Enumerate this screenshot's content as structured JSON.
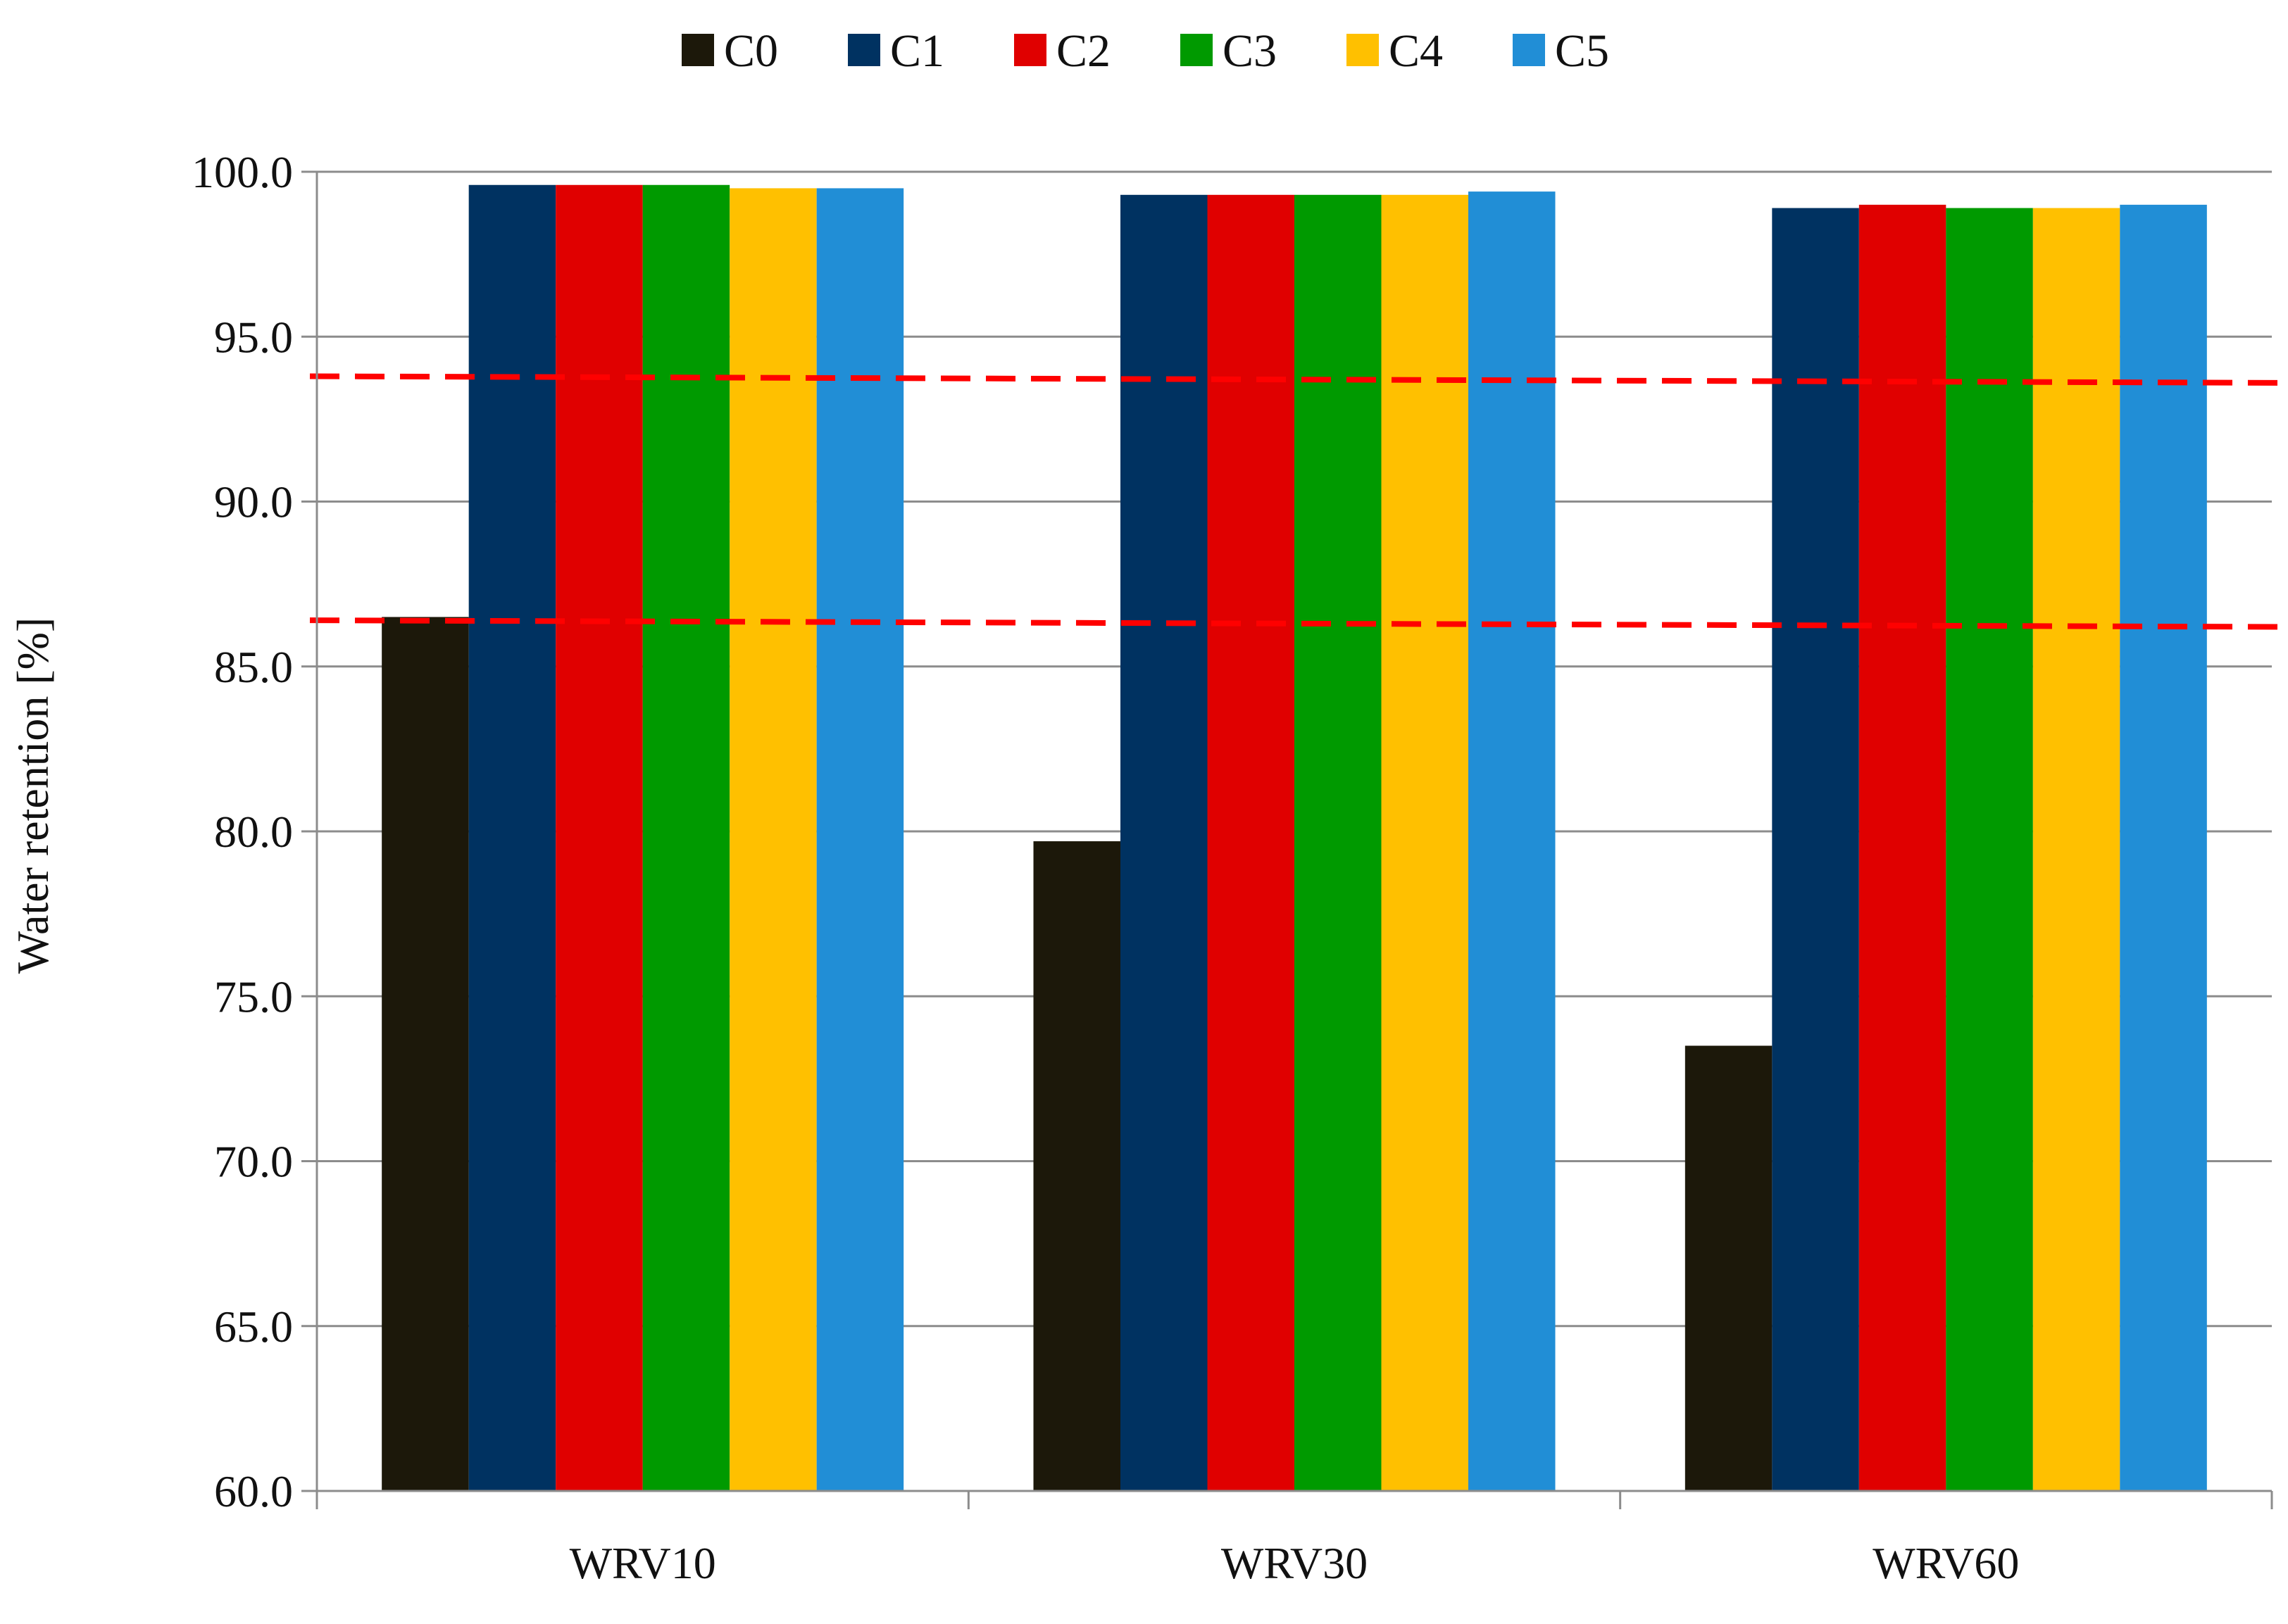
{
  "chart_data": {
    "type": "bar",
    "title": "",
    "xlabel": "",
    "ylabel": "Water retention [%]",
    "categories": [
      "WRV10",
      "WRV30",
      "WRV60"
    ],
    "ylim": [
      60.0,
      100.0
    ],
    "yticks": [
      "60.0",
      "65.0",
      "70.0",
      "75.0",
      "80.0",
      "85.0",
      "90.0",
      "95.0",
      "100.0"
    ],
    "ytick_values": [
      60,
      65,
      70,
      75,
      80,
      85,
      90,
      95,
      100
    ],
    "grid": true,
    "legend_position": "top-center",
    "series": [
      {
        "name": "C0",
        "color": "#1c180a",
        "values": [
          86.5,
          79.7,
          73.5
        ]
      },
      {
        "name": "C1",
        "color": "#003261",
        "values": [
          99.6,
          99.3,
          98.9
        ]
      },
      {
        "name": "C2",
        "color": "#e00000",
        "values": [
          99.6,
          99.3,
          99.0
        ]
      },
      {
        "name": "C3",
        "color": "#009a00",
        "values": [
          99.6,
          99.3,
          98.9
        ]
      },
      {
        "name": "C4",
        "color": "#ffc000",
        "values": [
          99.5,
          99.3,
          98.9
        ]
      },
      {
        "name": "C5",
        "color": "#218ed6",
        "values": [
          99.5,
          99.4,
          99.0
        ]
      }
    ],
    "annotations": [
      {
        "type": "dashed-line",
        "color": "#ff0000",
        "y_start": 93.8,
        "y_end": 93.6
      },
      {
        "type": "dashed-line",
        "color": "#ff0000",
        "y_start": 86.4,
        "y_end": 86.2
      }
    ]
  }
}
